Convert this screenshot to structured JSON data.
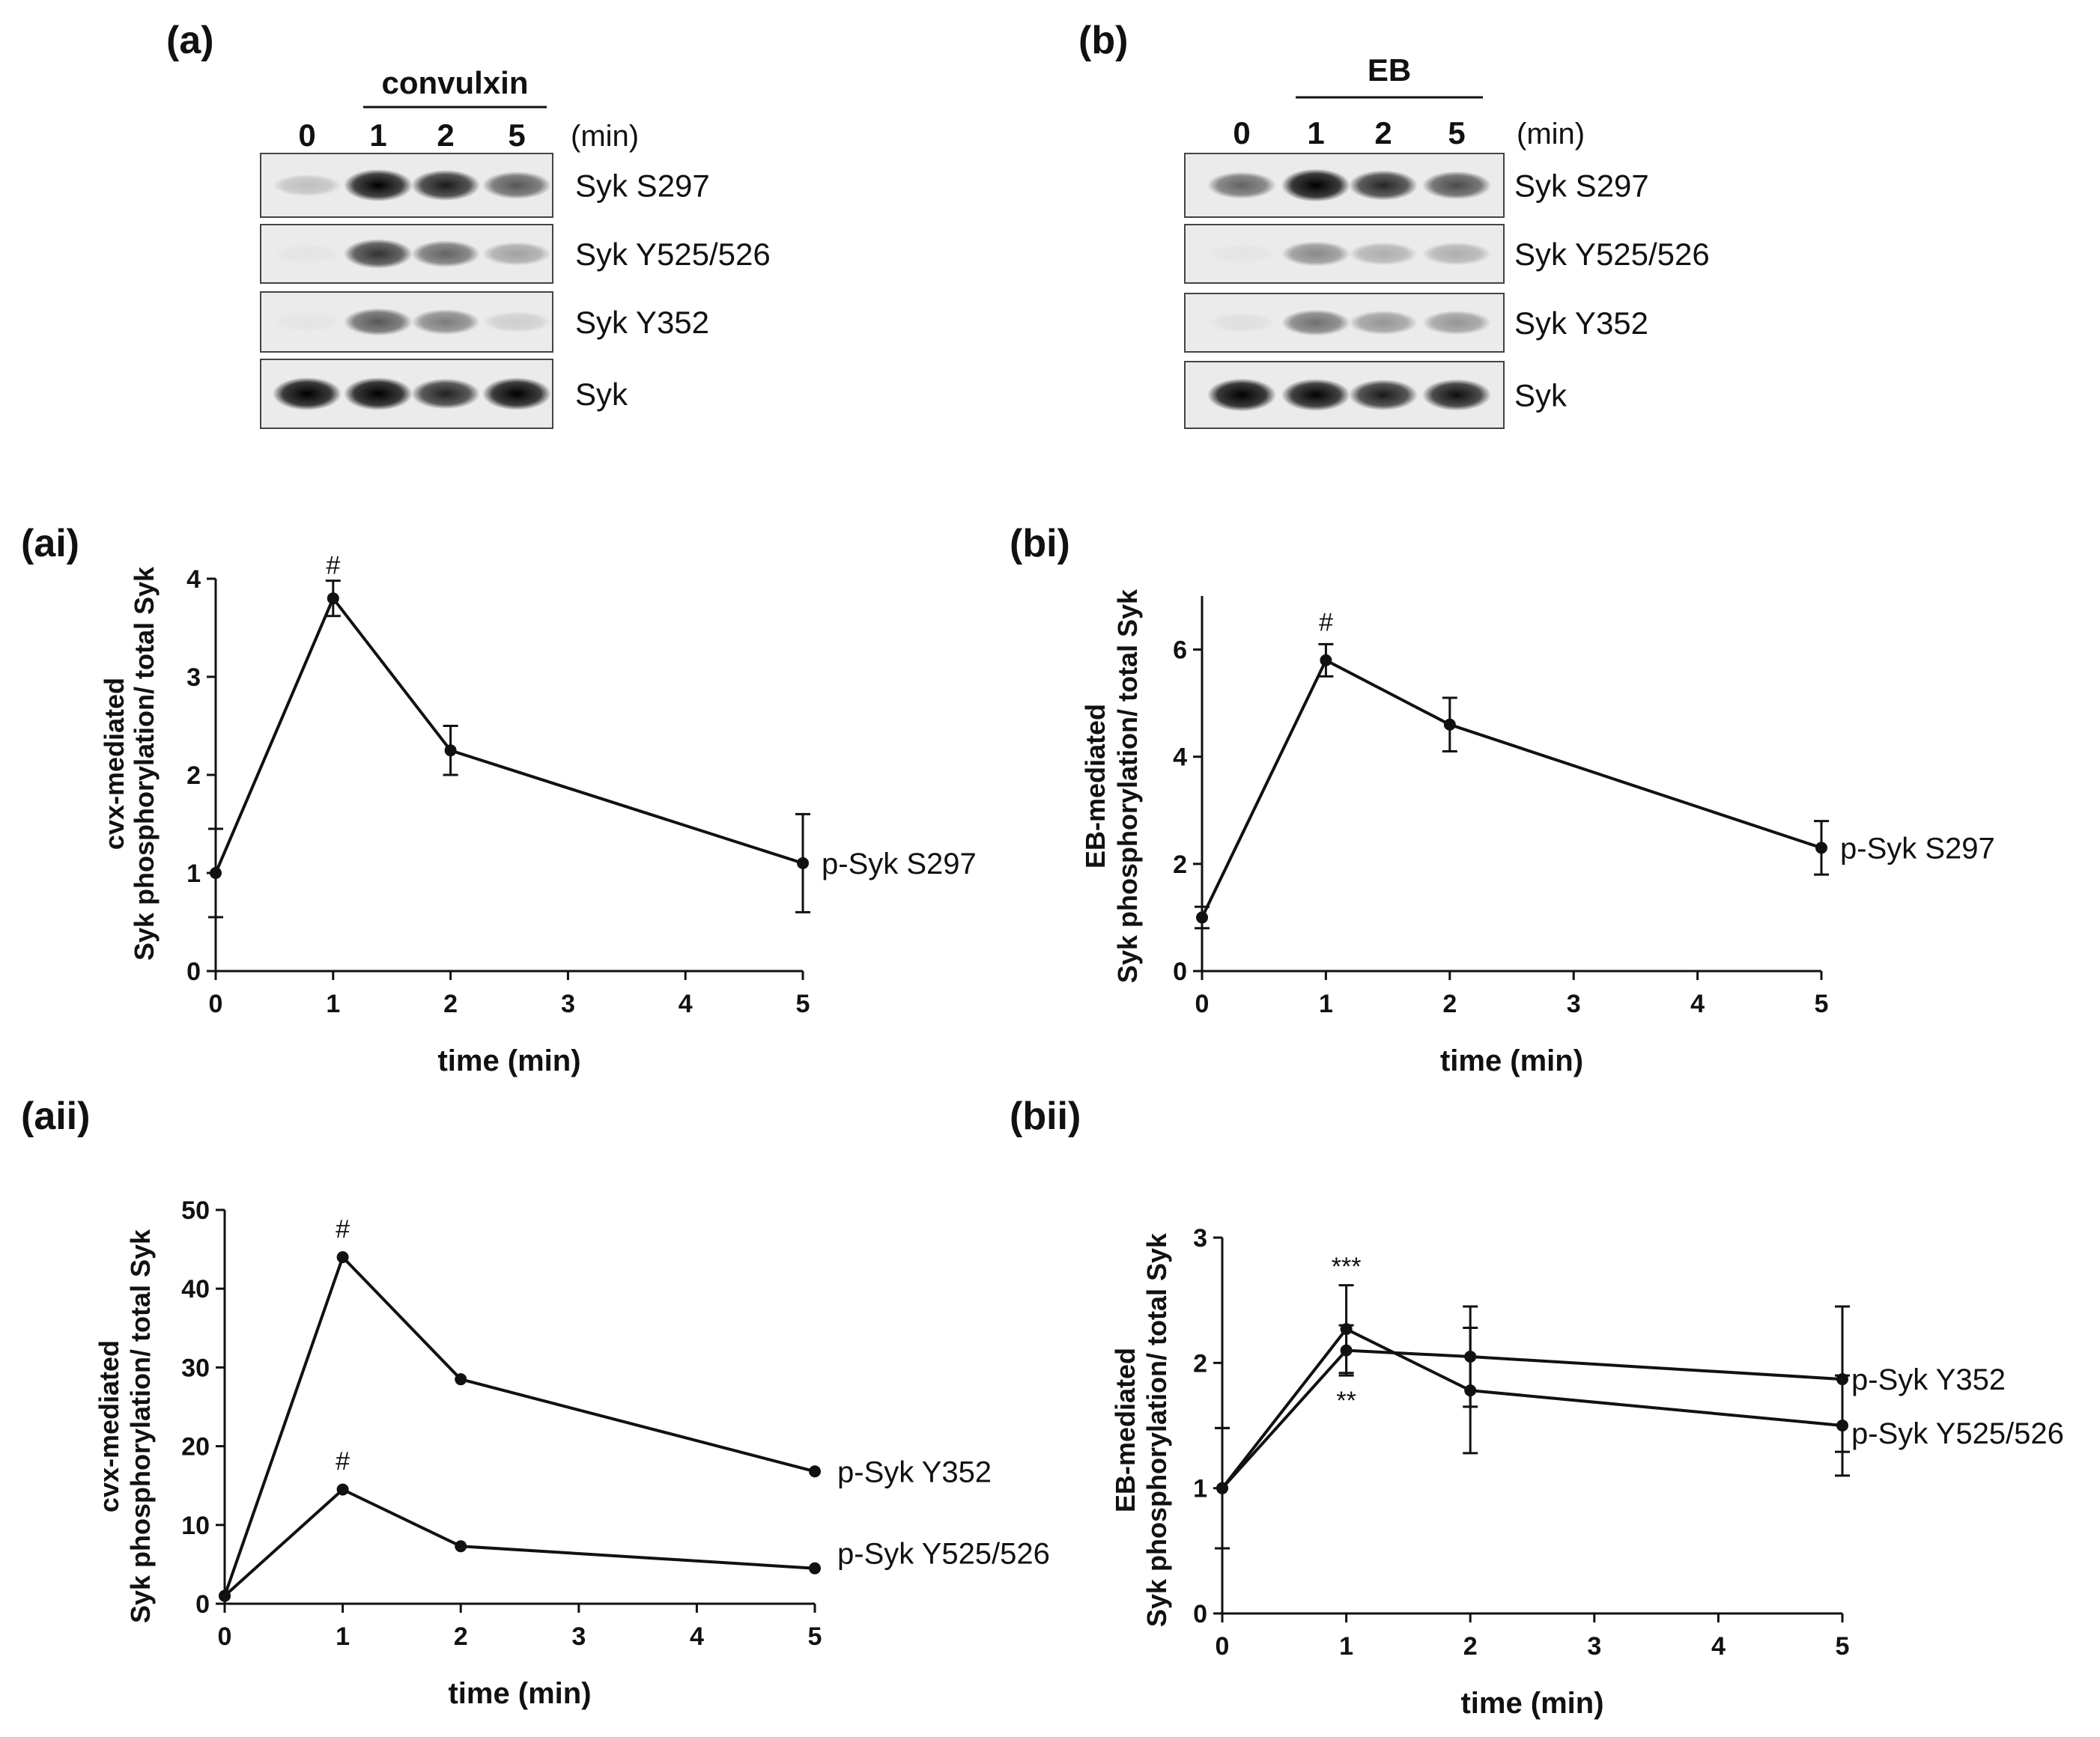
{
  "blots": [
    {
      "label": "(a)",
      "treatment": "convulxin",
      "times": [
        "0",
        "1",
        "2",
        "5"
      ],
      "unit": "(min)",
      "rows": [
        {
          "name": "Syk S297",
          "intensity": [
            0.18,
            0.95,
            0.85,
            0.6
          ]
        },
        {
          "name": "Syk Y525/526",
          "intensity": [
            0.03,
            0.75,
            0.55,
            0.3
          ]
        },
        {
          "name": "Syk Y352",
          "intensity": [
            0.03,
            0.6,
            0.45,
            0.12
          ]
        },
        {
          "name": "Syk",
          "intensity": [
            1.0,
            1.0,
            0.82,
            0.98
          ]
        }
      ]
    },
    {
      "label": "(b)",
      "treatment": "EB",
      "times": [
        "0",
        "1",
        "2",
        "5"
      ],
      "unit": "(min)",
      "rows": [
        {
          "name": "Syk S297",
          "intensity": [
            0.55,
            1.0,
            0.8,
            0.65
          ]
        },
        {
          "name": "Syk Y525/526",
          "intensity": [
            0.03,
            0.4,
            0.25,
            0.25
          ]
        },
        {
          "name": "Syk Y352",
          "intensity": [
            0.05,
            0.5,
            0.35,
            0.35
          ]
        },
        {
          "name": "Syk",
          "intensity": [
            1.0,
            0.95,
            0.85,
            0.9
          ]
        }
      ]
    }
  ],
  "chart_data": [
    {
      "id": "ai",
      "label": "(ai)",
      "type": "line",
      "xlabel": "time (min)",
      "ylabel_lines": [
        "cvx-mediated",
        "Syk phosphorylation/ total Syk"
      ],
      "ylim": [
        0,
        4
      ],
      "yticks": [
        0,
        1,
        2,
        3,
        4
      ],
      "xlim": [
        0,
        5
      ],
      "xticks": [
        0,
        1,
        2,
        3,
        4,
        5
      ],
      "series": [
        {
          "name": "p-Syk S297",
          "x": [
            0,
            1,
            2,
            5
          ],
          "y": [
            1.0,
            3.8,
            2.25,
            1.1
          ],
          "err": [
            0.45,
            0.18,
            0.25,
            0.5
          ]
        }
      ],
      "annotations": [
        {
          "text": "#",
          "x": 1,
          "y": 4.05
        }
      ]
    },
    {
      "id": "bi",
      "label": "(bi)",
      "type": "line",
      "xlabel": "time (min)",
      "ylabel_lines": [
        "EB-mediated",
        "Syk phosphorylation/ total Syk"
      ],
      "ylim": [
        0,
        7
      ],
      "yticks": [
        0,
        2,
        4,
        6
      ],
      "xlim": [
        0,
        5
      ],
      "xticks": [
        0,
        1,
        2,
        3,
        4,
        5
      ],
      "series": [
        {
          "name": "p-Syk S297",
          "x": [
            0,
            1,
            2,
            5
          ],
          "y": [
            1.0,
            5.8,
            4.6,
            2.3
          ],
          "err": [
            0.2,
            0.3,
            0.5,
            0.5
          ]
        }
      ],
      "annotations": [
        {
          "text": "#",
          "x": 1,
          "y": 6.35
        }
      ]
    },
    {
      "id": "aii",
      "label": "(aii)",
      "type": "line",
      "xlabel": "time (min)",
      "ylabel_lines": [
        "cvx-mediated",
        "Syk phosphorylation/ total Syk"
      ],
      "ylim": [
        0,
        50
      ],
      "yticks": [
        0,
        10,
        20,
        30,
        40,
        50
      ],
      "xlim": [
        0,
        5
      ],
      "xticks": [
        0,
        1,
        2,
        3,
        4,
        5
      ],
      "series": [
        {
          "name": "p-Syk Y352",
          "x": [
            0,
            1,
            2,
            5
          ],
          "y": [
            1.0,
            44,
            28.5,
            16.8
          ],
          "err": [
            0,
            0,
            0,
            0
          ]
        },
        {
          "name": "p-Syk Y525/526",
          "x": [
            0,
            1,
            2,
            5
          ],
          "y": [
            1.0,
            14.5,
            7.3,
            4.5
          ],
          "err": [
            0,
            0,
            0,
            0
          ]
        }
      ],
      "annotations": [
        {
          "text": "#",
          "x": 1,
          "y": 46.5
        },
        {
          "text": "#",
          "x": 1,
          "y": 17
        }
      ]
    },
    {
      "id": "bii",
      "label": "(bii)",
      "type": "line",
      "xlabel": "time (min)",
      "ylabel_lines": [
        "EB-mediated",
        "Syk phosphorylation/ total Syk"
      ],
      "ylim": [
        0,
        3
      ],
      "yticks": [
        0,
        1,
        2,
        3
      ],
      "xlim": [
        0,
        5
      ],
      "xticks": [
        0,
        1,
        2,
        3,
        4,
        5
      ],
      "series": [
        {
          "name": "p-Syk Y352",
          "x": [
            0,
            1,
            2,
            5
          ],
          "y": [
            1.0,
            2.1,
            2.05,
            1.87
          ],
          "err": [
            0.48,
            0.2,
            0.4,
            0.58
          ]
        },
        {
          "name": "p-Syk Y525/526",
          "x": [
            0,
            1,
            2,
            5
          ],
          "y": [
            1.0,
            2.27,
            1.78,
            1.5
          ],
          "err": [
            0.48,
            0.35,
            0.5,
            0.4
          ]
        }
      ],
      "annotations": [
        {
          "text": "***",
          "x": 1,
          "y": 2.7
        },
        {
          "text": "**",
          "x": 1,
          "y": 1.63
        }
      ]
    }
  ]
}
